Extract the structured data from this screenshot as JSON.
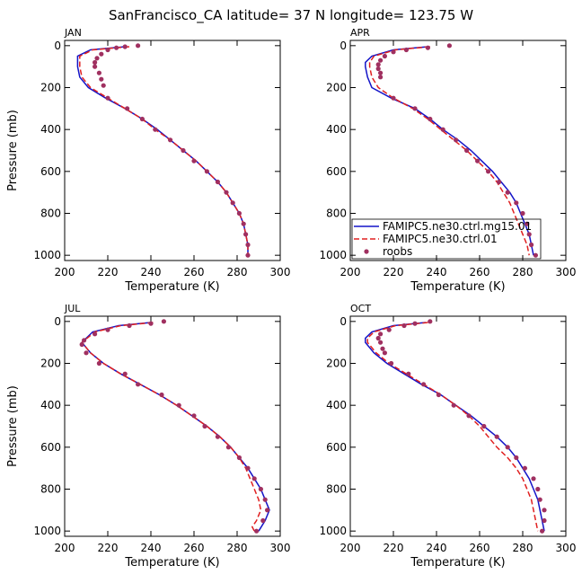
{
  "title": "SanFrancisco_CA  latitude= 37 N longitude= 123.75 W",
  "chart_data": [
    {
      "type": "line",
      "title": "JAN",
      "xlabel": "Temperature (K)",
      "ylabel": "Pressure (mb)",
      "xlim": [
        200,
        300
      ],
      "xticks": [
        200,
        220,
        240,
        260,
        280,
        300
      ],
      "ylim": [
        1025,
        -25
      ],
      "yticks": [
        0,
        200,
        400,
        600,
        800,
        1000
      ],
      "series": [
        {
          "color": "#1414c8",
          "style": "solid",
          "levels": [
            5,
            20,
            50,
            100,
            150,
            200,
            250,
            300,
            350,
            400,
            450,
            500,
            550,
            600,
            650,
            700,
            750,
            800,
            850,
            900,
            950,
            1000
          ],
          "values": [
            228,
            212,
            206,
            206,
            207,
            211,
            219,
            228,
            236,
            243,
            249,
            255,
            261,
            266,
            271,
            275,
            278,
            281,
            283,
            284,
            285,
            285
          ]
        },
        {
          "color": "#e02020",
          "style": "dashed",
          "levels": [
            5,
            20,
            50,
            100,
            150,
            200,
            250,
            300,
            350,
            400,
            450,
            500,
            550,
            600,
            650,
            700,
            750,
            800,
            850,
            900,
            950,
            1000
          ],
          "values": [
            230,
            213,
            207,
            207,
            208,
            212,
            220,
            228,
            236,
            242,
            249,
            255,
            261,
            266,
            271,
            275,
            278,
            281,
            283,
            284,
            285,
            285
          ]
        },
        {
          "color": "#a03060",
          "style": "dots",
          "levels": [
            0,
            5,
            10,
            20,
            40,
            60,
            80,
            100,
            130,
            160,
            190,
            250,
            300,
            350,
            400,
            450,
            500,
            550,
            600,
            650,
            700,
            750,
            800,
            850,
            900,
            950,
            1000
          ],
          "values": [
            234,
            228,
            224,
            220,
            217,
            215,
            214,
            214,
            216,
            217,
            218,
            220,
            229,
            236,
            242,
            249,
            255,
            260,
            266,
            271,
            275,
            278,
            281,
            283,
            284,
            285,
            285
          ]
        }
      ]
    },
    {
      "type": "line",
      "title": "APR",
      "xlabel": "Temperature (K)",
      "xlim": [
        200,
        300
      ],
      "xticks": [
        200,
        220,
        240,
        260,
        280,
        300
      ],
      "ylim": [
        1025,
        -25
      ],
      "yticks": [
        0,
        200,
        400,
        600,
        800,
        1000
      ],
      "legend": "lower-right",
      "series": [
        {
          "name": "FAMIPC5.ne30.ctrl.mg15.01",
          "color": "#1414c8",
          "style": "solid",
          "levels": [
            5,
            20,
            50,
            80,
            100,
            150,
            200,
            250,
            300,
            350,
            400,
            450,
            500,
            550,
            600,
            650,
            700,
            750,
            800,
            850,
            900,
            950,
            1000
          ],
          "values": [
            236,
            220,
            210,
            207,
            207,
            208,
            210,
            219,
            230,
            237,
            243,
            250,
            256,
            261,
            266,
            270,
            274,
            277,
            279,
            281,
            283,
            284,
            285
          ]
        },
        {
          "name": "FAMIPC5.ne30.ctrl.01",
          "color": "#e02020",
          "style": "dashed",
          "levels": [
            5,
            20,
            50,
            80,
            100,
            150,
            200,
            250,
            300,
            350,
            400,
            450,
            500,
            550,
            600,
            650,
            700,
            750,
            800,
            850,
            900,
            950,
            1000
          ],
          "values": [
            237,
            221,
            211,
            209,
            209,
            210,
            213,
            220,
            229,
            236,
            242,
            248,
            254,
            259,
            264,
            268,
            271,
            274,
            276,
            278,
            280,
            282,
            283
          ]
        },
        {
          "name": "roobs",
          "color": "#a03060",
          "style": "dots",
          "levels": [
            0,
            10,
            20,
            30,
            50,
            70,
            90,
            110,
            130,
            150,
            250,
            300,
            350,
            400,
            450,
            500,
            550,
            600,
            650,
            700,
            750,
            800,
            850,
            900,
            950,
            1000
          ],
          "values": [
            246,
            236,
            226,
            220,
            216,
            214,
            213,
            213,
            214,
            214,
            220,
            230,
            237,
            243,
            249,
            254,
            259,
            264,
            269,
            273,
            277,
            280,
            282,
            283,
            284,
            286
          ]
        }
      ]
    },
    {
      "type": "line",
      "title": "JUL",
      "xlabel": "Temperature (K)",
      "ylabel": "Pressure (mb)",
      "xlim": [
        200,
        300
      ],
      "xticks": [
        200,
        220,
        240,
        260,
        280,
        300
      ],
      "ylim": [
        1025,
        -25
      ],
      "yticks": [
        0,
        200,
        400,
        600,
        800,
        1000
      ],
      "series": [
        {
          "color": "#1414c8",
          "style": "solid",
          "levels": [
            5,
            20,
            50,
            100,
            150,
            200,
            250,
            300,
            350,
            400,
            450,
            500,
            550,
            600,
            650,
            700,
            750,
            800,
            850,
            900,
            950,
            1000
          ],
          "values": [
            240,
            225,
            213,
            208,
            212,
            218,
            226,
            235,
            244,
            252,
            259,
            266,
            272,
            277,
            281,
            285,
            288,
            291,
            293,
            295,
            293,
            290
          ]
        },
        {
          "color": "#e02020",
          "style": "dashed",
          "levels": [
            5,
            20,
            50,
            100,
            150,
            200,
            250,
            300,
            350,
            400,
            450,
            500,
            550,
            600,
            650,
            700,
            750,
            800,
            850,
            900,
            950,
            980,
            1000
          ],
          "values": [
            241,
            226,
            214,
            208,
            212,
            218,
            226,
            235,
            244,
            252,
            259,
            266,
            272,
            277,
            281,
            284,
            286,
            288,
            290,
            291,
            289,
            287,
            288
          ]
        },
        {
          "color": "#a03060",
          "style": "dots",
          "levels": [
            0,
            10,
            20,
            40,
            60,
            90,
            110,
            150,
            200,
            250,
            300,
            350,
            400,
            450,
            500,
            550,
            600,
            650,
            700,
            750,
            800,
            850,
            900,
            950,
            1000
          ],
          "values": [
            246,
            240,
            230,
            220,
            214,
            209,
            208,
            210,
            216,
            228,
            234,
            245,
            253,
            260,
            265,
            271,
            276,
            281,
            285,
            288,
            291,
            293,
            294,
            292,
            289
          ]
        }
      ]
    },
    {
      "type": "line",
      "title": "OCT",
      "xlabel": "Temperature (K)",
      "xlim": [
        200,
        300
      ],
      "xticks": [
        200,
        220,
        240,
        260,
        280,
        300
      ],
      "ylim": [
        1025,
        -25
      ],
      "yticks": [
        0,
        200,
        400,
        600,
        800,
        1000
      ],
      "series": [
        {
          "color": "#1414c8",
          "style": "solid",
          "levels": [
            5,
            20,
            50,
            80,
            100,
            150,
            200,
            250,
            300,
            350,
            400,
            450,
            500,
            550,
            600,
            650,
            700,
            750,
            800,
            850,
            900,
            950,
            1000
          ],
          "values": [
            235,
            220,
            210,
            207,
            207,
            211,
            217,
            225,
            233,
            242,
            249,
            256,
            262,
            268,
            273,
            277,
            280,
            283,
            285,
            287,
            288,
            289,
            290
          ]
        },
        {
          "color": "#e02020",
          "style": "dashed",
          "levels": [
            5,
            20,
            50,
            80,
            100,
            150,
            200,
            250,
            300,
            350,
            400,
            450,
            500,
            550,
            600,
            650,
            700,
            750,
            800,
            850,
            900,
            950,
            1000
          ],
          "values": [
            236,
            221,
            211,
            208,
            208,
            212,
            218,
            226,
            234,
            242,
            249,
            255,
            260,
            264,
            268,
            273,
            277,
            280,
            282,
            284,
            285,
            286,
            287
          ]
        },
        {
          "color": "#a03060",
          "style": "dots",
          "levels": [
            0,
            10,
            20,
            40,
            60,
            80,
            100,
            130,
            150,
            200,
            250,
            300,
            350,
            400,
            450,
            500,
            550,
            600,
            650,
            700,
            750,
            800,
            850,
            900,
            950,
            1000
          ],
          "values": [
            237,
            230,
            225,
            218,
            214,
            213,
            214,
            215,
            216,
            219,
            227,
            234,
            241,
            248,
            255,
            262,
            268,
            273,
            277,
            281,
            285,
            287,
            288,
            290,
            290,
            289
          ]
        }
      ]
    }
  ]
}
